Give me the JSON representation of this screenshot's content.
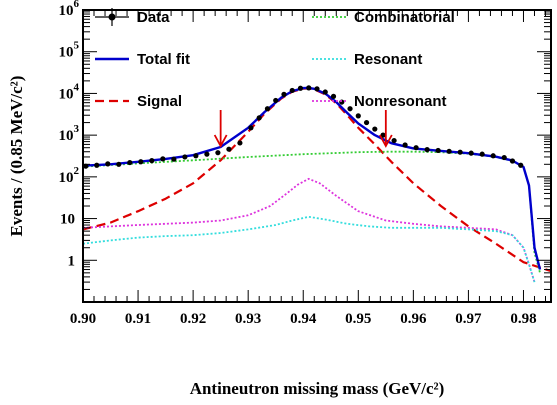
{
  "chart_data": {
    "type": "line",
    "xlabel": "Antineutron missing mass (GeV/c²)",
    "ylabel": "Events / (0.85 MeV/c²)",
    "xlim": [
      0.9,
      0.985
    ],
    "ylim": [
      0.1,
      1000000
    ],
    "yscale": "log",
    "x_ticks": [
      0.9,
      0.91,
      0.92,
      0.93,
      0.94,
      0.95,
      0.96,
      0.97,
      0.98
    ],
    "x_tick_labels": [
      "0.90",
      "0.91",
      "0.92",
      "0.93",
      "0.94",
      "0.95",
      "0.96",
      "0.97",
      "0.98"
    ],
    "y_tick_labels": [
      {
        "base": "1",
        "exp": "",
        "value": 1
      },
      {
        "base": "10",
        "exp": "",
        "value": 10
      },
      {
        "base": "10",
        "exp": "2",
        "value": 100
      },
      {
        "base": "10",
        "exp": "3",
        "value": 1000
      },
      {
        "base": "10",
        "exp": "4",
        "value": 10000
      },
      {
        "base": "10",
        "exp": "5",
        "value": 100000
      },
      {
        "base": "10",
        "exp": "6",
        "value": 1000000
      }
    ],
    "legend_placement": "top",
    "legend": [
      {
        "name": "Data",
        "color": "#000000",
        "style": "marker"
      },
      {
        "name": "Total fit",
        "color": "#0000cc",
        "style": "solid"
      },
      {
        "name": "Signal",
        "color": "#dd0000",
        "style": "dashed"
      },
      {
        "name": "Combinatorial",
        "color": "#33cc33",
        "style": "dotted"
      },
      {
        "name": "Resonant",
        "color": "#33dddd",
        "style": "dotted"
      },
      {
        "name": "Nonresonant",
        "color": "#dd33dd",
        "style": "dotted"
      }
    ],
    "arrows": [
      {
        "x": 0.925,
        "color": "#dd0000"
      },
      {
        "x": 0.955,
        "color": "#dd0000"
      }
    ],
    "series": [
      {
        "name": "Signal",
        "color": "#dd0000",
        "style": "dashed",
        "x": [
          0.9,
          0.905,
          0.91,
          0.915,
          0.92,
          0.925,
          0.93,
          0.933,
          0.936,
          0.938,
          0.94,
          0.941,
          0.942,
          0.944,
          0.946,
          0.948,
          0.95,
          0.953,
          0.956,
          0.96,
          0.965,
          0.97,
          0.975,
          0.98,
          0.985
        ],
        "values": [
          5.5,
          8,
          15,
          30,
          70,
          250,
          1200,
          3300,
          7500,
          11000,
          13000,
          13200,
          12500,
          9500,
          5800,
          3000,
          1500,
          600,
          230,
          70,
          20,
          6.5,
          2.5,
          0.9,
          0.55
        ]
      },
      {
        "name": "Combinatorial",
        "color": "#33cc33",
        "style": "dotted",
        "x": [
          0.9,
          0.91,
          0.92,
          0.93,
          0.94,
          0.95,
          0.955,
          0.96,
          0.965,
          0.97,
          0.975,
          0.978,
          0.98,
          0.981,
          0.982,
          0.983
        ],
        "values": [
          175,
          210,
          250,
          300,
          350,
          390,
          400,
          400,
          390,
          360,
          300,
          240,
          170,
          60,
          1.5,
          0.5
        ]
      },
      {
        "name": "Total fit",
        "color": "#0000cc",
        "style": "solid",
        "x": [
          0.9,
          0.905,
          0.91,
          0.915,
          0.92,
          0.925,
          0.93,
          0.933,
          0.936,
          0.938,
          0.94,
          0.941,
          0.942,
          0.944,
          0.946,
          0.948,
          0.95,
          0.953,
          0.956,
          0.96,
          0.965,
          0.97,
          0.975,
          0.978,
          0.98,
          0.981,
          0.982,
          0.983
        ],
        "values": [
          185,
          200,
          230,
          270,
          330,
          520,
          1500,
          3600,
          7900,
          11400,
          13400,
          13600,
          12900,
          9900,
          6200,
          3400,
          1900,
          1000,
          640,
          480,
          420,
          370,
          305,
          245,
          172,
          62,
          2,
          0.6
        ]
      },
      {
        "name": "Nonresonant",
        "color": "#dd33dd",
        "style": "dotted",
        "x": [
          0.9,
          0.905,
          0.91,
          0.915,
          0.92,
          0.925,
          0.93,
          0.934,
          0.937,
          0.939,
          0.941,
          0.943,
          0.946,
          0.95,
          0.955,
          0.96,
          0.965,
          0.97,
          0.975,
          0.978,
          0.98,
          0.981,
          0.982
        ],
        "values": [
          6,
          6.5,
          7,
          7.5,
          8,
          9,
          12,
          20,
          40,
          65,
          90,
          70,
          35,
          15,
          9,
          7.5,
          6.5,
          6,
          5.5,
          4,
          2,
          0.8,
          0.3
        ]
      },
      {
        "name": "Resonant",
        "color": "#33dddd",
        "style": "dotted",
        "x": [
          0.9,
          0.905,
          0.91,
          0.915,
          0.92,
          0.925,
          0.93,
          0.935,
          0.938,
          0.941,
          0.944,
          0.948,
          0.952,
          0.956,
          0.96,
          0.965,
          0.97,
          0.975,
          0.978,
          0.98,
          0.981,
          0.982
        ],
        "values": [
          2.5,
          3,
          3.5,
          3.8,
          4,
          4.5,
          5.5,
          7,
          9,
          11,
          9.5,
          7.5,
          6.5,
          6,
          6,
          6,
          5.5,
          5,
          4,
          2,
          0.8,
          0.3
        ]
      }
    ],
    "data_points": {
      "name": "Data",
      "x": [
        0.9005,
        0.9025,
        0.9045,
        0.9065,
        0.9085,
        0.9105,
        0.9125,
        0.9145,
        0.9165,
        0.9185,
        0.9205,
        0.9225,
        0.9245,
        0.9265,
        0.9285,
        0.9305,
        0.932,
        0.9335,
        0.935,
        0.9365,
        0.938,
        0.9395,
        0.941,
        0.9425,
        0.944,
        0.9455,
        0.947,
        0.9485,
        0.95,
        0.9515,
        0.953,
        0.9545,
        0.9565,
        0.9585,
        0.9605,
        0.9625,
        0.9645,
        0.9665,
        0.9685,
        0.9705,
        0.9725,
        0.9745,
        0.9765,
        0.978,
        0.9795
      ],
      "values": [
        180,
        190,
        205,
        200,
        220,
        230,
        245,
        270,
        265,
        300,
        320,
        350,
        380,
        460,
        650,
        1500,
        2600,
        4300,
        6800,
        9500,
        11800,
        13300,
        13600,
        12900,
        10800,
        8500,
        6200,
        4300,
        2900,
        2000,
        1400,
        1000,
        740,
        580,
        500,
        450,
        430,
        410,
        390,
        370,
        350,
        320,
        290,
        240,
        190
      ]
    }
  }
}
